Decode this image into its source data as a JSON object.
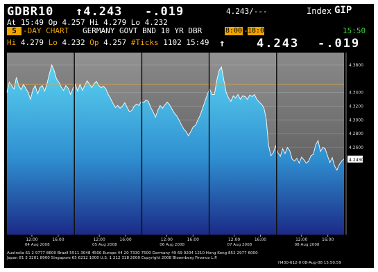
{
  "header": {
    "ticker": "GDBR10",
    "last_value": "↑4.243",
    "change": "-.019",
    "bid_ask": "4.243/---",
    "index_label": "Index",
    "index_code": "GIP"
  },
  "quote_line": {
    "text": "At 15:49  Op 4.257 Hi 4.279 Lo 4.232"
  },
  "chart_header": {
    "days": "5",
    "label": "-DAY CHART",
    "security_name": "GERMANY GOVT BND 10 YR DBR",
    "start_time": "8:00",
    "dash": "-",
    "end_time": "18:00",
    "time": "15:50"
  },
  "stats_line": {
    "hi_label": "Hi",
    "hi": "4.279",
    "lo_label": "Lo",
    "lo": "4.232",
    "op_label": "Op",
    "op": "4.257",
    "ticks_label": "#Ticks",
    "ticks": "1102",
    "time": "15:49",
    "arrow": "↑",
    "last": "4.243",
    "change": "-.019"
  },
  "chart_data": {
    "type": "area",
    "ylim": [
      4.133,
      4.398
    ],
    "y_ticks": [
      "4.3800",
      "4.3400",
      "4.3200",
      "4.3000",
      "4.2800",
      "4.2600"
    ],
    "y_tick_values": [
      4.38,
      4.34,
      4.32,
      4.3,
      4.28,
      4.26
    ],
    "current_value_label": "4.2430",
    "current_value": 4.243,
    "reference_line": 4.352,
    "days": [
      {
        "ticks": [
          "12:00",
          "16:00"
        ],
        "date": "04 Aug 2008"
      },
      {
        "ticks": [
          "12:00",
          "16:00"
        ],
        "date": "05 Aug 2008"
      },
      {
        "ticks": [
          "12:00",
          "16:00"
        ],
        "date": "06 Aug 2008"
      },
      {
        "ticks": [
          "12:00",
          "16:00"
        ],
        "date": "07 Aug 2008"
      },
      {
        "ticks": [
          "12:00",
          "16:00"
        ],
        "date": "08 Aug 2008"
      }
    ],
    "series": [
      {
        "values": [
          4.34,
          4.355,
          4.35,
          4.345,
          4.362,
          4.35,
          4.344,
          4.352,
          4.346,
          4.34,
          4.33,
          4.344,
          4.35,
          4.338,
          4.347,
          4.35,
          4.342,
          4.353,
          4.367,
          4.38,
          4.372,
          4.36,
          4.355,
          4.348,
          4.343,
          4.35,
          4.346,
          4.337,
          4.346,
          4.352,
          4.342,
          4.352,
          4.343,
          4.35,
          4.357,
          4.352,
          4.347,
          4.353,
          4.356,
          4.35,
          4.347,
          4.349,
          4.345,
          4.337,
          4.331,
          4.324,
          4.318,
          4.321,
          4.317,
          4.32,
          4.325,
          4.318,
          4.312,
          4.314,
          4.32,
          4.323,
          4.321,
          4.327,
          4.325,
          4.329,
          4.327,
          4.318,
          4.312,
          4.304,
          4.314,
          4.321,
          4.317,
          4.322,
          4.326,
          4.322,
          4.316,
          4.31,
          4.306,
          4.3,
          4.293,
          4.287,
          4.283,
          4.277,
          4.283,
          4.29,
          4.292,
          4.3,
          4.307,
          4.317,
          4.327,
          4.337,
          4.345,
          4.337,
          4.337,
          4.357,
          4.372,
          4.377,
          4.358,
          4.34,
          4.332,
          4.327,
          4.335,
          4.332,
          4.337,
          4.33,
          4.335,
          4.334,
          4.33,
          4.336,
          4.334,
          4.337,
          4.33,
          4.326,
          4.323,
          4.318,
          4.302,
          4.263,
          4.248,
          4.252,
          4.262,
          4.252,
          4.247,
          4.258,
          4.251,
          4.26,
          4.255,
          4.243,
          4.24,
          4.244,
          4.237,
          4.246,
          4.242,
          4.237,
          4.24,
          4.248,
          4.25,
          4.264,
          4.27,
          4.254,
          4.26,
          4.258,
          4.248,
          4.238,
          4.245,
          4.233,
          4.227,
          4.235,
          4.24,
          4.243
        ]
      }
    ]
  },
  "footer": {
    "line1": "Australia 61 2 9777 8600 Brazil 5511 3048 4500 Europe 44 20 7330 7500 Germany 49 69 9204 1210 Hong Kong 852 2977 6000",
    "line2": "Japan 81 3 3201 8900          Singapore 65 6212 1000          U.S. 1 212 318 2000          Copyright 2008 Bloomberg Finance L.P.",
    "line3": "H430-612-0 08-Aug-08 15:50:59"
  },
  "colors": {
    "background": "#000000",
    "accent_orange": "#f0a500",
    "time_green": "#3fd43f",
    "area_top": "#5ad2f0",
    "area_bottom": "#1c2a86",
    "reference_line": "#d9a240"
  }
}
